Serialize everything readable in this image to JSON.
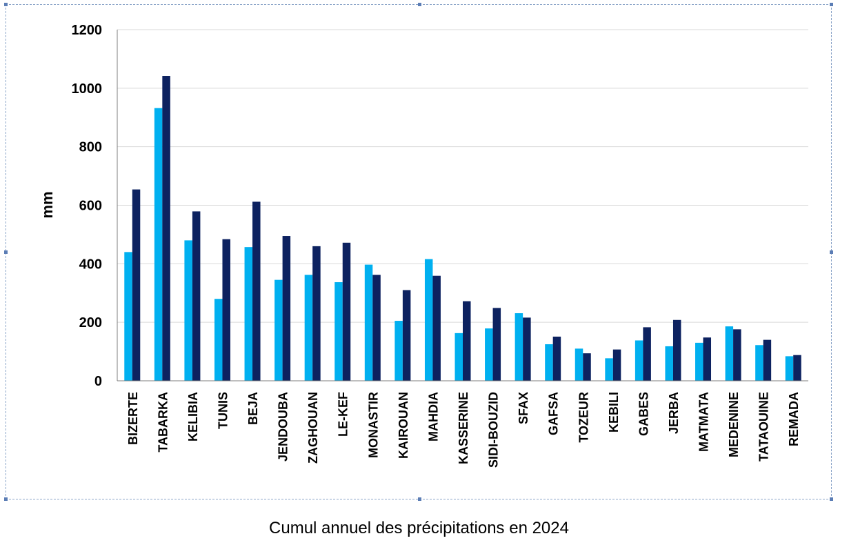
{
  "caption": "Cumul annuel des précipitations en 2024",
  "colors": {
    "series1": "#00b0f0",
    "series2": "#0d2260",
    "grid": "#d9d9d9",
    "frame": "#8aa4c8"
  },
  "chart_data": {
    "type": "bar",
    "ylabel": "mm",
    "ylim": [
      0,
      1200
    ],
    "yticks": [
      0,
      200,
      400,
      600,
      800,
      1000,
      1200
    ],
    "grid": true,
    "legend": "none",
    "categories": [
      "BIZERTE",
      "TABARKA",
      "KELIBIA",
      "TUNIS",
      "BEJA",
      "JENDOUBA",
      "ZAGHOUAN",
      "LE-KEF",
      "MONASTIR",
      "KAIROUAN",
      "MAHDIA",
      "KASSERINE",
      "SIDI-BOUZID",
      "SFAX",
      "GAFSA",
      "TOZEUR",
      "KEBILI",
      "GABES",
      "JERBA",
      "MATMATA",
      "MEDENINE",
      "TATAOUINE",
      "REMADA"
    ],
    "series": [
      {
        "values": [
          440,
          932,
          480,
          280,
          457,
          345,
          362,
          337,
          397,
          205,
          416,
          163,
          179,
          231,
          125,
          110,
          77,
          138,
          118,
          130,
          186,
          122,
          84
        ]
      },
      {
        "values": [
          654,
          1042,
          579,
          484,
          612,
          495,
          460,
          472,
          362,
          310,
          359,
          272,
          249,
          216,
          151,
          94,
          107,
          183,
          208,
          148,
          176,
          140,
          88
        ]
      }
    ]
  }
}
